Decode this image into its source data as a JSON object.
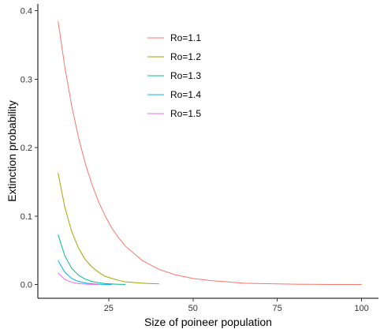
{
  "chart_data": {
    "type": "line",
    "title": "",
    "xlabel": "Size of poineer population",
    "ylabel": "Extinction probability",
    "xlim": [
      4,
      105
    ],
    "ylim": [
      -0.02,
      0.41
    ],
    "xticks": [
      25,
      50,
      75,
      100
    ],
    "yticks": [
      0.0,
      0.1,
      0.2,
      0.3,
      0.4
    ],
    "ytick_labels": [
      "0.0",
      "0.1",
      "0.2",
      "0.3",
      "0.4"
    ],
    "grid": false,
    "legend_position": "top-center",
    "series": [
      {
        "name": "Ro=1.1",
        "color": "#f8766d",
        "x": [
          10,
          12,
          14,
          16,
          18,
          20,
          22,
          24,
          26,
          28,
          30,
          35,
          40,
          45,
          50,
          55,
          60,
          65,
          70,
          75,
          80,
          85,
          90,
          95,
          100
        ],
        "y": [
          0.385,
          0.318,
          0.262,
          0.216,
          0.178,
          0.147,
          0.121,
          0.1,
          0.082,
          0.068,
          0.056,
          0.035,
          0.022,
          0.014,
          0.009,
          0.006,
          0.004,
          0.002,
          0.0015,
          0.001,
          0.0006,
          0.0004,
          0.0002,
          0.0001,
          0.0001
        ]
      },
      {
        "name": "Ro=1.2",
        "color": "#a3a500",
        "x": [
          10,
          12,
          14,
          16,
          18,
          20,
          22,
          24,
          26,
          28,
          30,
          35,
          40
        ],
        "y": [
          0.163,
          0.113,
          0.078,
          0.054,
          0.037,
          0.026,
          0.018,
          0.012,
          0.009,
          0.006,
          0.004,
          0.002,
          0.001
        ]
      },
      {
        "name": "Ro=1.3",
        "color": "#00bf7d",
        "x": [
          10,
          12,
          14,
          16,
          18,
          20,
          22,
          24,
          26,
          28,
          30
        ],
        "y": [
          0.073,
          0.042,
          0.024,
          0.014,
          0.008,
          0.0046,
          0.0027,
          0.0015,
          0.0009,
          0.0005,
          0.0003
        ]
      },
      {
        "name": "Ro=1.4",
        "color": "#00b0f6",
        "x": [
          10,
          12,
          14,
          16,
          18,
          20,
          22,
          24,
          26
        ],
        "y": [
          0.035,
          0.018,
          0.009,
          0.0046,
          0.0023,
          0.0012,
          0.0006,
          0.0003,
          0.0002
        ]
      },
      {
        "name": "Ro=1.5",
        "color": "#e76bf3",
        "x": [
          10,
          12,
          14,
          16,
          18,
          20,
          22
        ],
        "y": [
          0.017,
          0.0076,
          0.0034,
          0.0015,
          0.0007,
          0.0003,
          0.0001
        ]
      }
    ]
  }
}
